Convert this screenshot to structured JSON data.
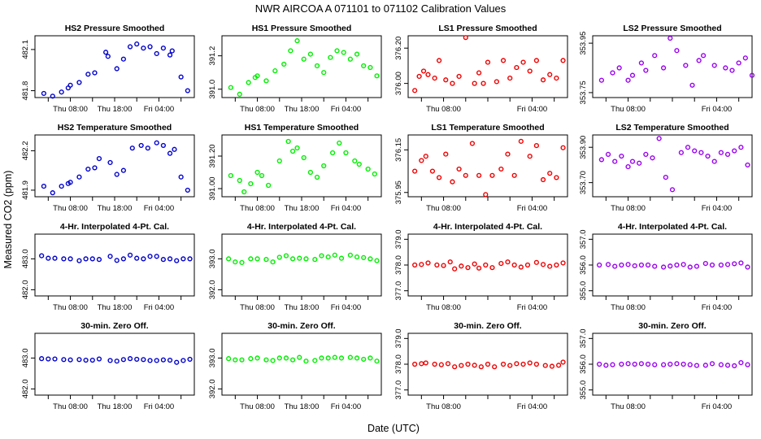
{
  "figure": {
    "title": "NWR    AIRCOA A    071101 to 071102    Calibration Values",
    "ylabel": "Measured CO2 (ppm)",
    "xlabel": "Date (UTC)"
  },
  "colors": {
    "HS2": "#0000cc",
    "HS1": "#00ee00",
    "LS1": "#ee0000",
    "LS2": "#9900ee"
  },
  "chart_data": [
    {
      "type": "scatter",
      "row": 0,
      "col": 0,
      "title": "HS2 Pressure Smoothed",
      "color": "HS2",
      "ylim": [
        481.75,
        482.2
      ],
      "yticks": [
        481.8,
        482.1
      ],
      "ytick_labels": [
        "481.8",
        "482.1"
      ],
      "xlim": [
        0,
        36
      ],
      "xticks": [
        8,
        18,
        28
      ],
      "xtick_labels": [
        "Thu 08:00",
        "Thu 18:00",
        "Fri 04:00"
      ],
      "x": [
        2,
        4,
        6,
        7.5,
        8,
        10,
        12,
        13.5,
        16,
        16.5,
        18.5,
        20,
        21.5,
        23,
        24.5,
        26,
        27.5,
        29,
        30.5,
        31,
        33,
        34.5
      ],
      "values": [
        481.78,
        481.76,
        481.79,
        481.82,
        481.84,
        481.86,
        481.92,
        481.93,
        482.08,
        482.05,
        481.96,
        482.03,
        482.12,
        482.14,
        482.11,
        482.12,
        482.07,
        482.11,
        482.06,
        482.09,
        481.9,
        481.8
      ]
    },
    {
      "type": "scatter",
      "row": 0,
      "col": 1,
      "title": "HS1 Pressure Smoothed",
      "color": "HS1",
      "ylim": [
        390.95,
        391.32
      ],
      "yticks": [
        391.0,
        391.2
      ],
      "ytick_labels": [
        "391.0",
        "391.2"
      ],
      "xlim": [
        0,
        36
      ],
      "xticks": [
        8,
        18,
        28
      ],
      "xtick_labels": [
        "Thu 08:00",
        "Thu 18:00",
        "Fri 04:00"
      ],
      "x": [
        2,
        4,
        6,
        7.5,
        8,
        10,
        12,
        14,
        15.5,
        17,
        18.5,
        20,
        21.5,
        23,
        24.5,
        26,
        27.5,
        29,
        30.5,
        32,
        33.5,
        35
      ],
      "values": [
        391.01,
        390.97,
        391.04,
        391.07,
        391.08,
        391.05,
        391.11,
        391.15,
        391.23,
        391.29,
        391.18,
        391.21,
        391.14,
        391.1,
        391.19,
        391.23,
        391.22,
        391.18,
        391.21,
        391.14,
        391.13,
        391.08
      ]
    },
    {
      "type": "scatter",
      "row": 0,
      "col": 2,
      "title": "LS1 Pressure Smoothed",
      "color": "LS1",
      "ylim": [
        375.92,
        376.27
      ],
      "yticks": [
        376.0,
        376.2
      ],
      "ytick_labels": [
        "376.00",
        "376.20"
      ],
      "xlim": [
        0,
        36
      ],
      "xticks": [
        8,
        28
      ],
      "xtick_labels": [
        "Thu 08:00",
        "Fri 04:00"
      ],
      "x": [
        1.5,
        2.5,
        3.5,
        4.5,
        6,
        7,
        8.5,
        10,
        11.5,
        13,
        15,
        16,
        17,
        18,
        20,
        21.5,
        23,
        24.5,
        26,
        27.5,
        29,
        30.5,
        32,
        33.5,
        35
      ],
      "values": [
        375.96,
        376.04,
        376.07,
        376.05,
        376.03,
        376.13,
        376.02,
        376.0,
        376.04,
        376.26,
        376.0,
        376.06,
        376.0,
        376.12,
        376.01,
        376.13,
        376.03,
        376.09,
        376.12,
        376.07,
        376.13,
        376.02,
        376.05,
        376.03,
        376.13
      ]
    },
    {
      "type": "scatter",
      "row": 0,
      "col": 3,
      "title": "LS2 Pressure Smoothed",
      "color": "LS2",
      "ylim": [
        353.73,
        353.98
      ],
      "yticks": [
        353.75,
        353.95
      ],
      "ytick_labels": [
        "353.75",
        "353.95"
      ],
      "xlim": [
        0,
        36
      ],
      "xticks": [
        8,
        28
      ],
      "xtick_labels": [
        "Thu 08:00",
        "Fri 04:00"
      ],
      "x": [
        2,
        4.5,
        6,
        8,
        9,
        11,
        12,
        14,
        16,
        17.5,
        19,
        21,
        22.5,
        24,
        25,
        27.5,
        30,
        31.5,
        33,
        34.5,
        36
      ],
      "values": [
        353.8,
        353.83,
        353.85,
        353.8,
        353.82,
        353.87,
        353.84,
        353.9,
        353.85,
        353.97,
        353.92,
        353.86,
        353.78,
        353.88,
        353.9,
        353.86,
        353.85,
        353.84,
        353.87,
        353.89,
        353.82
      ]
    },
    {
      "type": "scatter",
      "row": 1,
      "col": 0,
      "title": "HS2 Temperature Smoothed",
      "color": "HS2",
      "ylim": [
        481.85,
        482.32
      ],
      "yticks": [
        481.9,
        482.2
      ],
      "ytick_labels": [
        "481.9",
        "482.2"
      ],
      "xlim": [
        0,
        36
      ],
      "xticks": [
        8,
        18,
        28
      ],
      "xtick_labels": [
        "Thu 08:00",
        "Thu 18:00",
        "Fri 04:00"
      ],
      "x": [
        2,
        4,
        6,
        7.5,
        8,
        10,
        12,
        13.5,
        14.5,
        17,
        18.5,
        20,
        22,
        24,
        25.5,
        27.5,
        29,
        30.5,
        31.5,
        33,
        34.5
      ],
      "values": [
        481.93,
        481.88,
        481.93,
        481.95,
        481.96,
        482.0,
        482.06,
        482.07,
        482.14,
        482.11,
        482.02,
        482.05,
        482.22,
        482.24,
        482.22,
        482.26,
        482.24,
        482.18,
        482.21,
        482.0,
        481.9
      ]
    },
    {
      "type": "scatter",
      "row": 1,
      "col": 1,
      "title": "HS1 Temperature Smoothed",
      "color": "HS1",
      "ylim": [
        390.95,
        391.33
      ],
      "yticks": [
        391.0,
        391.2
      ],
      "ytick_labels": [
        "391.00",
        "391.20"
      ],
      "xlim": [
        0,
        36
      ],
      "xticks": [
        8,
        18,
        28
      ],
      "xtick_labels": [
        "Thu 08:00",
        "Thu 18:00",
        "Fri 04:00"
      ],
      "x": [
        2,
        4,
        5,
        6.5,
        8,
        9,
        10.5,
        13,
        15,
        16,
        17,
        18.5,
        20,
        21.5,
        23,
        25,
        26.5,
        28,
        30,
        31,
        33,
        34.5
      ],
      "values": [
        391.08,
        391.05,
        390.98,
        391.03,
        391.1,
        391.08,
        391.02,
        391.17,
        391.29,
        391.23,
        391.25,
        391.19,
        391.1,
        391.07,
        391.14,
        391.22,
        391.28,
        391.22,
        391.17,
        391.15,
        391.12,
        391.09
      ]
    },
    {
      "type": "scatter",
      "row": 1,
      "col": 2,
      "title": "LS1 Temperature Smoothed",
      "color": "LS1",
      "ylim": [
        375.93,
        376.22
      ],
      "yticks": [
        375.95,
        376.15
      ],
      "ytick_labels": [
        "375.95",
        "376.15"
      ],
      "xlim": [
        0,
        36
      ],
      "xticks": [
        8,
        28
      ],
      "xtick_labels": [
        "Thu 08:00",
        "Fri 04:00"
      ],
      "x": [
        1.5,
        3,
        4,
        5.5,
        7,
        8.5,
        10,
        11.5,
        13,
        14.5,
        16,
        17.5,
        19,
        21,
        22.5,
        24,
        25.5,
        27.5,
        29,
        30.5,
        32,
        33.5,
        35
      ],
      "values": [
        376.05,
        376.1,
        376.12,
        376.05,
        376.02,
        376.13,
        376.0,
        376.06,
        376.03,
        376.18,
        376.03,
        375.94,
        376.03,
        376.06,
        376.13,
        376.03,
        376.19,
        376.12,
        376.17,
        376.01,
        376.04,
        376.02,
        376.16
      ]
    },
    {
      "type": "scatter",
      "row": 1,
      "col": 3,
      "title": "LS2 Temperature Smoothed",
      "color": "LS2",
      "ylim": [
        353.62,
        353.97
      ],
      "yticks": [
        353.7,
        353.9
      ],
      "ytick_labels": [
        "353.70",
        "353.90"
      ],
      "xlim": [
        0,
        36
      ],
      "xticks": [
        8,
        28
      ],
      "xtick_labels": [
        "Thu 08:00",
        "Fri 04:00"
      ],
      "x": [
        2,
        3.5,
        5,
        6.5,
        8,
        9,
        10.5,
        12,
        13.5,
        15,
        16.5,
        18,
        20,
        21.5,
        23,
        24.5,
        26,
        27.5,
        29,
        30.5,
        32,
        33.5,
        35
      ],
      "values": [
        353.83,
        353.86,
        353.82,
        353.85,
        353.79,
        353.82,
        353.81,
        353.86,
        353.84,
        353.95,
        353.73,
        353.66,
        353.87,
        353.9,
        353.88,
        353.87,
        353.85,
        353.82,
        353.87,
        353.86,
        353.88,
        353.9,
        353.8
      ]
    },
    {
      "type": "scatter",
      "row": 2,
      "col": 0,
      "title": "4-Hr. Interpolated 4-Pt. Cal.",
      "color": "HS2",
      "ylim": [
        481.8,
        483.8
      ],
      "yticks": [
        482.0,
        483.0
      ],
      "ytick_labels": [
        "482.0",
        "483.0"
      ],
      "xlim": [
        0,
        36
      ],
      "xticks": [
        8,
        18,
        28
      ],
      "xtick_labels": [
        "Thu 08:00",
        "Thu 18:00",
        "Fri 04:00"
      ],
      "x": [
        1.5,
        3,
        4.5,
        6.5,
        8,
        10,
        11.5,
        13,
        14.5,
        17,
        18.5,
        20,
        21.5,
        23,
        24.5,
        26,
        27.5,
        29,
        30.5,
        32,
        33.5,
        35
      ],
      "values": [
        483.1,
        483.02,
        483.02,
        483.0,
        483.0,
        482.94,
        483.0,
        483.0,
        482.98,
        483.08,
        482.95,
        483.0,
        483.12,
        483.02,
        483.0,
        483.08,
        483.08,
        482.98,
        483.0,
        482.94,
        483.0,
        483.0
      ]
    },
    {
      "type": "scatter",
      "row": 2,
      "col": 1,
      "title": "4-Hr. Interpolated 4-Pt. Cal.",
      "color": "HS1",
      "ylim": [
        391.8,
        393.8
      ],
      "yticks": [
        392.0,
        393.0
      ],
      "ytick_labels": [
        "392.0",
        "393.0"
      ],
      "xlim": [
        0,
        36
      ],
      "xticks": [
        8,
        18,
        28
      ],
      "xtick_labels": [
        "Thu 08:00",
        "Thu 18:00",
        "Fri 04:00"
      ],
      "x": [
        1.5,
        3,
        4.5,
        6.5,
        8,
        10,
        11.5,
        13,
        14.5,
        16,
        17.5,
        19,
        21,
        22.5,
        24,
        25.5,
        27,
        29,
        30.5,
        32,
        33.5,
        35
      ],
      "values": [
        393.0,
        392.9,
        392.88,
        393.0,
        393.0,
        392.98,
        392.9,
        393.05,
        393.1,
        393.0,
        393.02,
        393.0,
        392.98,
        393.1,
        393.06,
        393.12,
        393.02,
        393.12,
        393.06,
        393.04,
        393.0,
        392.94
      ]
    },
    {
      "type": "scatter",
      "row": 2,
      "col": 2,
      "title": "4-Hr. Interpolated 4-Pt. Cal.",
      "color": "LS1",
      "ylim": [
        376.8,
        379.2
      ],
      "yticks": [
        377.0,
        378.0,
        379.0
      ],
      "ytick_labels": [
        "377.0",
        "378.0",
        "379.0"
      ],
      "xlim": [
        0,
        36
      ],
      "xticks": [
        8,
        28
      ],
      "xtick_labels": [
        "Thu 08:00",
        "Fri 04:00"
      ],
      "x": [
        1.5,
        3,
        4.5,
        6.5,
        8,
        9.5,
        10.5,
        12,
        13.5,
        15,
        16,
        17.5,
        19,
        21,
        22.5,
        24,
        25.5,
        27,
        29,
        30.5,
        32,
        33.5,
        35
      ],
      "values": [
        378.0,
        378.02,
        378.08,
        378.0,
        377.98,
        378.12,
        377.85,
        377.96,
        377.9,
        378.04,
        377.88,
        378.0,
        377.9,
        378.06,
        378.12,
        378.0,
        377.92,
        378.0,
        378.1,
        378.02,
        377.95,
        378.0,
        378.08
      ]
    },
    {
      "type": "scatter",
      "row": 2,
      "col": 3,
      "title": "4-Hr. Interpolated 4-Pt. Cal.",
      "color": "LS2",
      "ylim": [
        354.8,
        357.2
      ],
      "yticks": [
        355.0,
        356.0,
        357.0
      ],
      "ytick_labels": [
        "355.0",
        "356.0",
        "357.0"
      ],
      "xlim": [
        0,
        36
      ],
      "xticks": [
        8,
        28
      ],
      "xtick_labels": [
        "Thu 08:00",
        "Fri 04:00"
      ],
      "x": [
        1.5,
        3.5,
        5,
        6.5,
        8,
        9.5,
        11,
        12.5,
        14,
        16,
        17.5,
        19,
        20.5,
        22,
        23.5,
        25.5,
        27,
        29,
        30.5,
        32,
        33.5,
        35
      ],
      "values": [
        356.0,
        356.02,
        355.95,
        356.0,
        356.02,
        355.97,
        356.0,
        356.0,
        355.95,
        355.92,
        355.96,
        356.0,
        356.02,
        355.92,
        355.95,
        356.06,
        356.0,
        356.0,
        356.02,
        356.05,
        356.08,
        355.92
      ]
    },
    {
      "type": "scatter",
      "row": 3,
      "col": 0,
      "title": "30-min. Zero Off.",
      "color": "HS2",
      "ylim": [
        481.8,
        483.8
      ],
      "yticks": [
        482.0,
        483.0
      ],
      "ytick_labels": [
        "482.0",
        "483.0"
      ],
      "xlim": [
        0,
        36
      ],
      "xticks": [
        8,
        18,
        28
      ],
      "xtick_labels": [
        "Thu 08:00",
        "Thu 18:00",
        "Fri 04:00"
      ],
      "x": [
        1.5,
        3,
        4.5,
        6.5,
        8,
        10,
        11.5,
        13,
        14.5,
        17,
        18.5,
        20,
        21.5,
        23,
        24.5,
        26,
        27.5,
        29,
        30.5,
        32,
        33.5,
        35
      ],
      "values": [
        482.98,
        482.97,
        482.97,
        482.95,
        482.94,
        482.95,
        482.93,
        482.93,
        482.97,
        482.92,
        482.9,
        482.95,
        482.98,
        482.96,
        482.95,
        482.92,
        482.92,
        482.94,
        482.93,
        482.86,
        482.92,
        482.96
      ]
    },
    {
      "type": "scatter",
      "row": 3,
      "col": 1,
      "title": "30-min. Zero Off.",
      "color": "HS1",
      "ylim": [
        391.8,
        393.8
      ],
      "yticks": [
        392.0,
        393.0
      ],
      "ytick_labels": [
        "392.0",
        "393.0"
      ],
      "xlim": [
        0,
        36
      ],
      "xticks": [
        8,
        18,
        28
      ],
      "xtick_labels": [
        "Thu 08:00",
        "Thu 18:00",
        "Fri 04:00"
      ],
      "x": [
        1.5,
        3,
        4.5,
        6.5,
        8,
        10,
        11.5,
        13,
        14.5,
        16,
        17.5,
        19,
        21,
        22.5,
        24,
        25.5,
        27,
        29,
        30.5,
        32,
        33.5,
        35
      ],
      "values": [
        392.98,
        392.94,
        392.94,
        392.98,
        393.0,
        392.94,
        392.92,
        393.0,
        393.0,
        392.94,
        393.02,
        392.9,
        392.92,
        393.0,
        393.0,
        393.02,
        393.0,
        393.02,
        393.0,
        392.96,
        393.0,
        392.9
      ]
    },
    {
      "type": "scatter",
      "row": 3,
      "col": 2,
      "title": "30-min. Zero Off.",
      "color": "LS1",
      "ylim": [
        376.8,
        379.2
      ],
      "yticks": [
        377.0,
        378.0,
        379.0
      ],
      "ytick_labels": [
        "377.0",
        "378.0",
        "379.0"
      ],
      "xlim": [
        0,
        36
      ],
      "xticks": [
        8,
        28
      ],
      "xtick_labels": [
        "Thu 08:00",
        "Fri 04:00"
      ],
      "x": [
        1.5,
        3,
        4,
        6,
        7.5,
        9,
        10.5,
        12,
        13.5,
        15,
        16.5,
        18,
        19.5,
        21.5,
        23,
        24.5,
        26,
        27.5,
        29,
        31,
        32.5,
        34,
        35
      ],
      "values": [
        378.0,
        378.02,
        378.05,
        378.0,
        377.98,
        378.02,
        377.9,
        377.95,
        378.0,
        377.96,
        377.9,
        378.0,
        377.9,
        378.0,
        377.95,
        378.02,
        378.0,
        378.05,
        378.0,
        377.95,
        377.92,
        377.96,
        378.08
      ]
    },
    {
      "type": "scatter",
      "row": 3,
      "col": 3,
      "title": "30-min. Zero Off.",
      "color": "LS2",
      "ylim": [
        354.8,
        357.2
      ],
      "yticks": [
        355.0,
        356.0,
        357.0
      ],
      "ytick_labels": [
        "355.0",
        "356.0",
        "357.0"
      ],
      "xlim": [
        0,
        36
      ],
      "xticks": [
        8,
        28
      ],
      "xtick_labels": [
        "Thu 08:00",
        "Fri 04:00"
      ],
      "x": [
        1.5,
        3,
        4.5,
        6.5,
        8,
        9.5,
        11,
        12.5,
        14,
        16,
        17.5,
        19,
        20.5,
        22,
        23.5,
        25.5,
        27,
        29,
        30.5,
        32,
        33.5,
        35
      ],
      "values": [
        356.0,
        355.96,
        355.98,
        356.0,
        356.02,
        356.0,
        356.02,
        356.0,
        355.98,
        355.98,
        356.0,
        356.02,
        356.0,
        355.98,
        355.95,
        355.96,
        356.02,
        355.98,
        355.96,
        355.94,
        356.06,
        355.98
      ]
    }
  ]
}
